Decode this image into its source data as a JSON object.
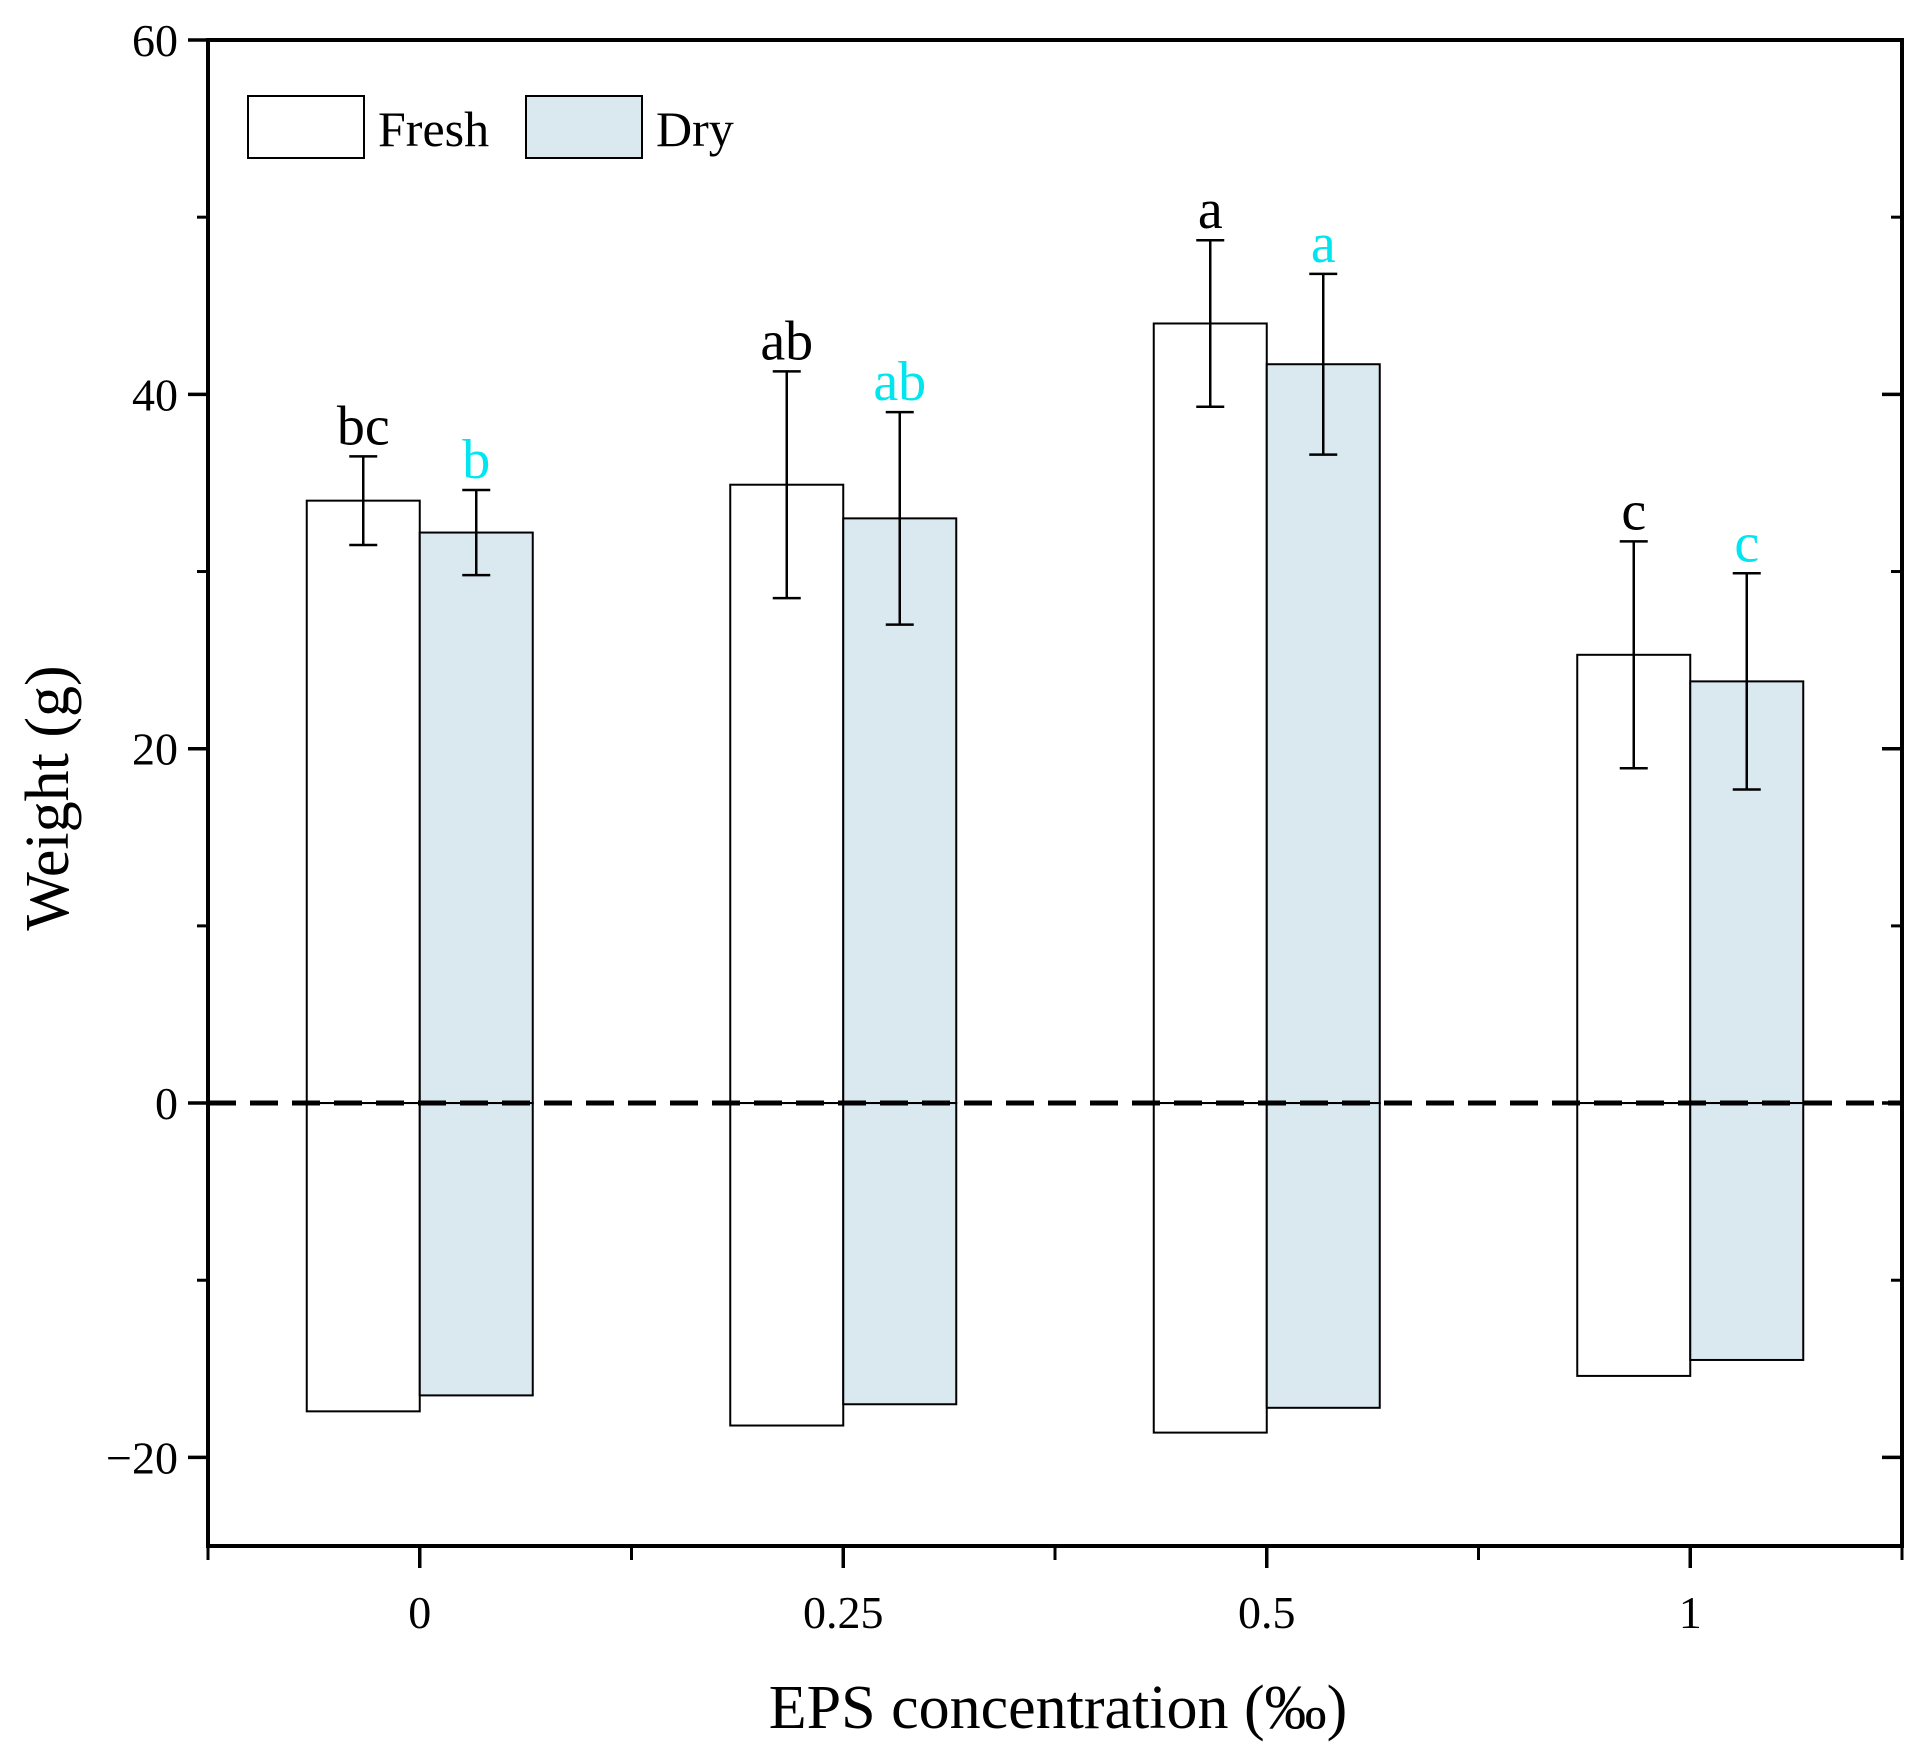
{
  "chart_data": {
    "type": "bar",
    "title": "",
    "xlabel": "EPS concentration (‰)",
    "ylabel": "Weight (g)",
    "categories": [
      "0",
      "0.25",
      "0.5",
      "1"
    ],
    "ylim": [
      -25,
      60
    ],
    "yticks": [
      -20,
      0,
      20,
      40,
      60
    ],
    "yticks_minor": [
      -10,
      10,
      30,
      50
    ],
    "baseline_dashed": 0,
    "legend_position": "top-left",
    "series": [
      {
        "name": "Fresh",
        "fill": "#ffffff",
        "label_color": "#000000",
        "positive_values": [
          34.0,
          34.9,
          44.0,
          25.3
        ],
        "negative_values": [
          -17.4,
          -18.2,
          -18.6,
          -15.4
        ],
        "error": [
          2.5,
          6.4,
          4.7,
          6.4
        ],
        "letters": [
          "bc",
          "ab",
          "a",
          "c"
        ]
      },
      {
        "name": "Dry",
        "fill": "#dae8f0",
        "label_color": "#00e5ee",
        "positive_values": [
          32.2,
          33.0,
          41.7,
          23.8
        ],
        "negative_values": [
          -16.5,
          -17.0,
          -17.2,
          -14.5
        ],
        "error": [
          2.4,
          6.0,
          5.1,
          6.1
        ],
        "letters": [
          "b",
          "ab",
          "a",
          "c"
        ]
      }
    ]
  }
}
